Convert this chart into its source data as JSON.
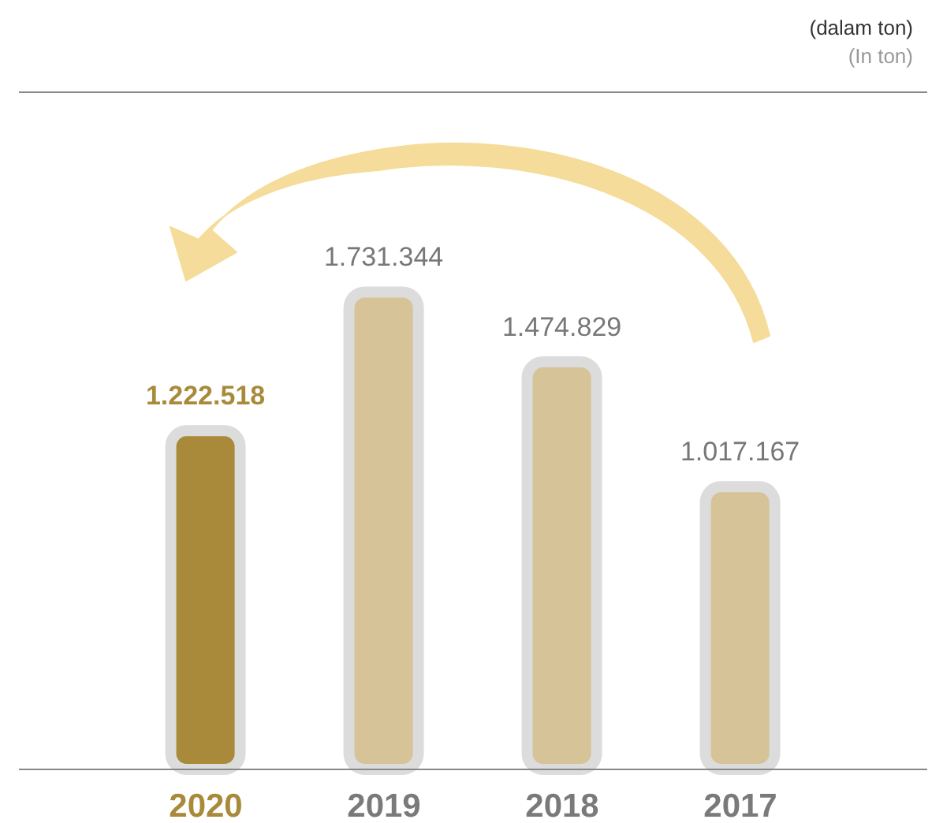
{
  "chart_data": {
    "type": "bar",
    "categories": [
      "2020",
      "2019",
      "2018",
      "2017"
    ],
    "values": [
      1222518,
      1731344,
      1474829,
      1017167
    ],
    "colors": [
      "#a88a3a",
      "#d6c397",
      "#d6c397",
      "#d6c397"
    ],
    "value_labels": [
      "1.222.518",
      "1.731.344",
      "1.474.829",
      "1.017.167"
    ],
    "annotations": [
      "(dalam ton)",
      "(In ton)"
    ]
  }
}
